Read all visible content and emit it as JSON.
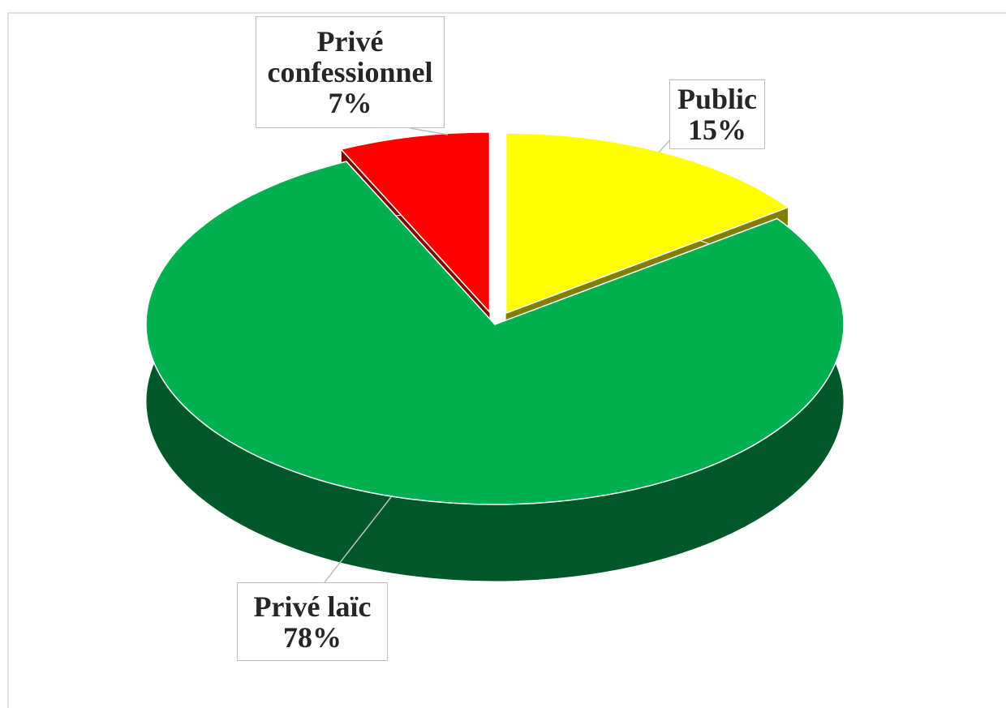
{
  "chart_data": {
    "type": "pie3d",
    "categories": [
      "Public",
      "Privé laïc",
      "Privé confessionnel"
    ],
    "values": [
      15,
      78,
      7
    ],
    "value_labels": [
      "15%",
      "78%",
      "7%"
    ],
    "colors": [
      "#ffff00",
      "#00b050",
      "#ff0000"
    ]
  }
}
